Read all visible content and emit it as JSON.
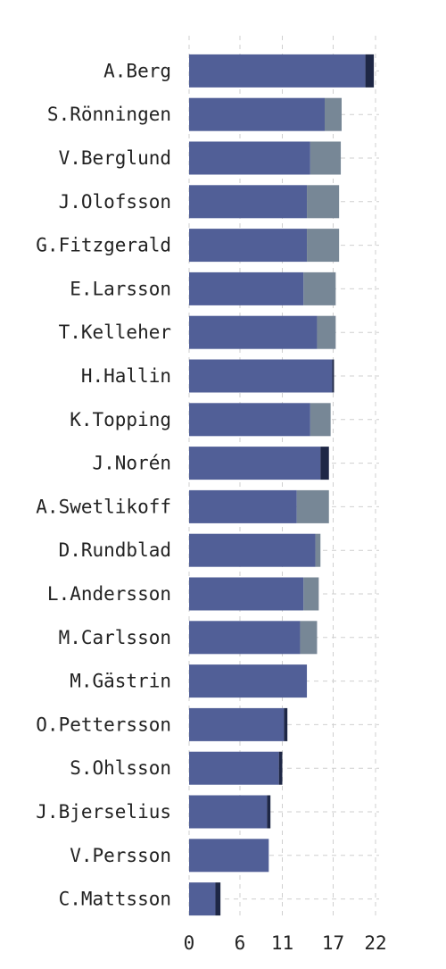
{
  "chart_data": {
    "type": "bar",
    "orientation": "horizontal",
    "stacked": true,
    "categories": [
      "A.Berg",
      "S.Rönningen",
      "V.Berglund",
      "J.Olofsson",
      "G.Fitzgerald",
      "E.Larsson",
      "T.Kelleher",
      "H.Hallin",
      "K.Topping",
      "J.Norén",
      "A.Swetlikoff",
      "D.Rundblad",
      "L.Andersson",
      "M.Carlsson",
      "M.Gästrin",
      "O.Pettersson",
      "S.Ohlsson",
      "J.Bjerselius",
      "V.Persson",
      "C.Mattsson"
    ],
    "series": [
      {
        "color": "#515f97",
        "values": [
          20.8,
          16.0,
          14.3,
          13.9,
          13.9,
          13.5,
          15.1,
          16.9,
          14.3,
          15.5,
          12.7,
          14.9,
          13.5,
          13.1,
          13.9,
          11.2,
          10.6,
          9.2,
          9.4,
          3.1
        ]
      },
      {
        "color": "#778796",
        "values": [
          0,
          2.0,
          3.6,
          3.8,
          3.8,
          3.8,
          2.2,
          0,
          2.4,
          0,
          3.8,
          0.6,
          1.8,
          2.0,
          0,
          0,
          0,
          0,
          0,
          0
        ]
      },
      {
        "color": "#1e2745",
        "values": [
          1.0,
          0,
          0,
          0,
          0,
          0,
          0,
          0.2,
          0,
          1.0,
          0,
          0,
          0,
          0,
          0,
          0.4,
          0.4,
          0.4,
          0,
          0.6
        ]
      }
    ],
    "x_ticks": [
      "0",
      "6",
      "11",
      "17",
      "22"
    ],
    "xlim": [
      0,
      22
    ],
    "grid": true
  }
}
